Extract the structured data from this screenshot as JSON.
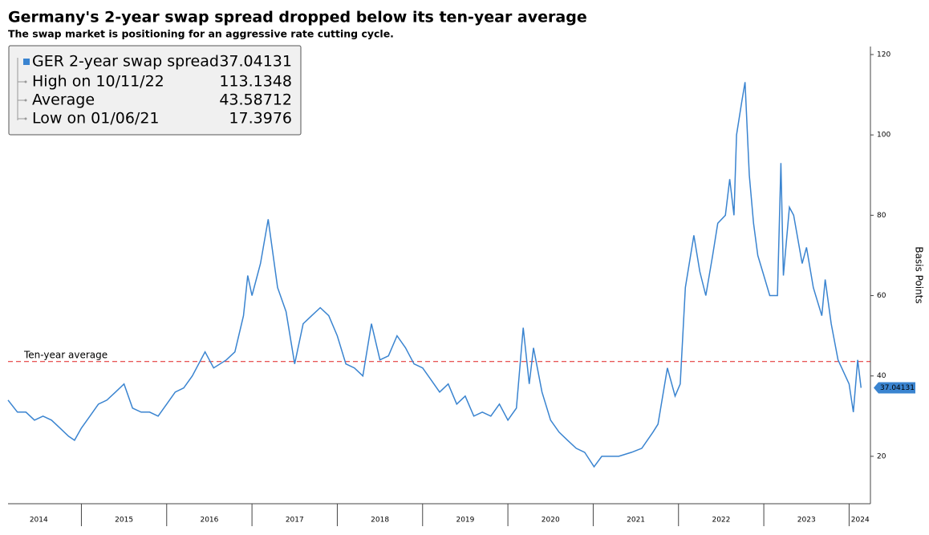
{
  "chart_data": {
    "type": "line",
    "title": "Germany's 2-year swap spread dropped below its ten-year average",
    "subtitle": "The swap market is positioning for an aggressive rate cutting cycle.",
    "y_axis_label": "Basis Points",
    "x": [
      2014.14,
      2014.25,
      2014.35,
      2014.45,
      2014.55,
      2014.65,
      2014.75,
      2014.85,
      2014.92,
      2015.0,
      2015.1,
      2015.2,
      2015.3,
      2015.4,
      2015.5,
      2015.6,
      2015.7,
      2015.8,
      2015.9,
      2016.0,
      2016.1,
      2016.2,
      2016.3,
      2016.45,
      2016.55,
      2016.7,
      2016.8,
      2016.9,
      2016.95,
      2017.0,
      2017.1,
      2017.19,
      2017.3,
      2017.4,
      2017.5,
      2017.6,
      2017.7,
      2017.8,
      2017.9,
      2018.0,
      2018.1,
      2018.2,
      2018.3,
      2018.4,
      2018.5,
      2018.6,
      2018.7,
      2018.8,
      2018.9,
      2019.0,
      2019.1,
      2019.2,
      2019.3,
      2019.4,
      2019.5,
      2019.6,
      2019.7,
      2019.8,
      2019.9,
      2020.0,
      2020.1,
      2020.18,
      2020.25,
      2020.3,
      2020.4,
      2020.5,
      2020.6,
      2020.7,
      2020.8,
      2020.9,
      2021.01,
      2021.1,
      2021.3,
      2021.45,
      2021.57,
      2021.7,
      2021.76,
      2021.87,
      2021.96,
      2022.02,
      2022.08,
      2022.18,
      2022.25,
      2022.32,
      2022.4,
      2022.46,
      2022.55,
      2022.6,
      2022.65,
      2022.68,
      2022.74,
      2022.78,
      2022.83,
      2022.88,
      2022.93,
      2023.0,
      2023.07,
      2023.16,
      2023.2,
      2023.23,
      2023.3,
      2023.35,
      2023.45,
      2023.5,
      2023.58,
      2023.68,
      2023.72,
      2023.79,
      2023.87,
      2024.0,
      2024.05,
      2024.1,
      2024.14
    ],
    "series": [
      {
        "name": "GER 2-year swap spread",
        "color": "#3a84d0",
        "values": [
          34,
          31,
          31,
          29,
          30,
          29,
          27,
          25,
          24,
          27,
          30,
          33,
          34,
          36,
          38,
          32,
          31,
          31,
          30,
          33,
          36,
          37,
          40,
          46,
          42,
          44,
          46,
          55,
          65,
          60,
          68,
          79,
          62,
          56,
          43,
          53,
          55,
          57,
          55,
          50,
          43,
          42,
          40,
          53,
          44,
          45,
          50,
          47,
          43,
          42,
          39,
          36,
          38,
          33,
          35,
          30,
          31,
          30,
          33,
          29,
          32,
          52,
          38,
          47,
          36,
          29,
          26,
          24,
          22,
          21,
          17.4,
          20,
          20,
          21,
          22,
          26,
          28,
          42,
          35,
          38,
          62,
          75,
          66,
          60,
          70,
          78,
          80,
          89,
          80,
          100,
          108,
          113.13,
          90,
          78,
          70,
          65,
          60,
          60,
          93,
          65,
          82,
          80,
          68,
          72,
          62,
          55,
          64,
          53,
          44,
          38,
          31,
          44,
          37.04131
        ]
      }
    ],
    "legend_stats": [
      {
        "label": "High on 10/11/22",
        "value": 113.1348
      },
      {
        "label": "Average",
        "value": 43.58712
      },
      {
        "label": "Low on 01/06/21",
        "value": 17.3976
      }
    ],
    "reference_line": {
      "label": "Ten-year average",
      "value": 43.58712,
      "color": "#e02020"
    },
    "xlim": [
      2014.14,
      2024.25
    ],
    "xticks": [
      {
        "value": 2014.5,
        "label": "2014"
      },
      {
        "value": 2015.5,
        "label": "2015"
      },
      {
        "value": 2016.5,
        "label": "2016"
      },
      {
        "value": 2017.5,
        "label": "2017"
      },
      {
        "value": 2018.5,
        "label": "2018"
      },
      {
        "value": 2019.5,
        "label": "2019"
      },
      {
        "value": 2020.5,
        "label": "2020"
      },
      {
        "value": 2021.5,
        "label": "2021"
      },
      {
        "value": 2022.5,
        "label": "2022"
      },
      {
        "value": 2023.5,
        "label": "2023"
      },
      {
        "value": 2024.13,
        "label": "2024"
      }
    ],
    "ylim": [
      8.2,
      122
    ],
    "yticks": [
      20,
      40,
      60,
      80,
      100,
      120
    ]
  }
}
